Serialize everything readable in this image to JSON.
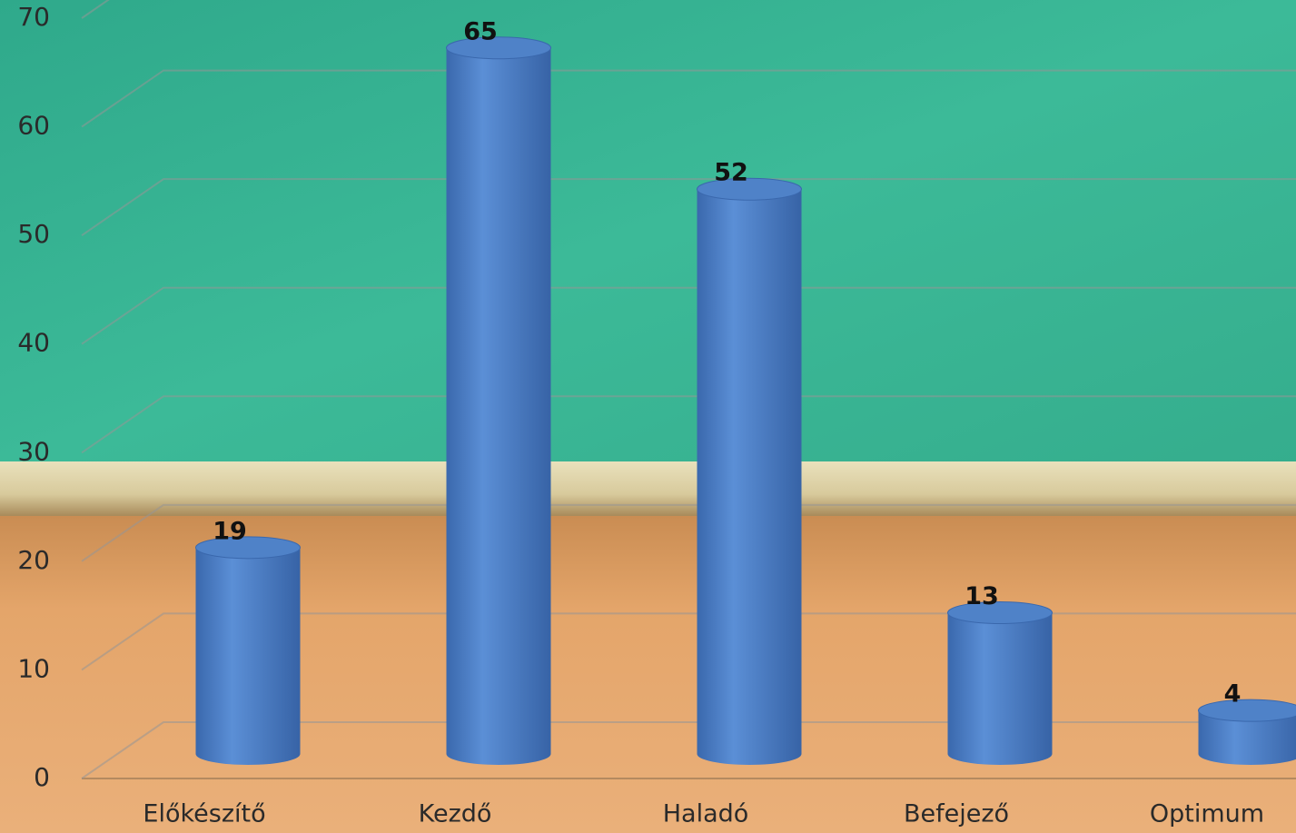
{
  "chart_data": {
    "type": "bar3d",
    "categories": [
      "Előkészítő",
      "Kezdő",
      "Haladó",
      "Befejező",
      "Optimum"
    ],
    "values": [
      19,
      65,
      52,
      13,
      4
    ],
    "color": "#4a7fc9",
    "ylim": [
      0,
      70
    ],
    "yticks": [
      0,
      10,
      20,
      30,
      40,
      50,
      60,
      70
    ],
    "grid": true
  }
}
